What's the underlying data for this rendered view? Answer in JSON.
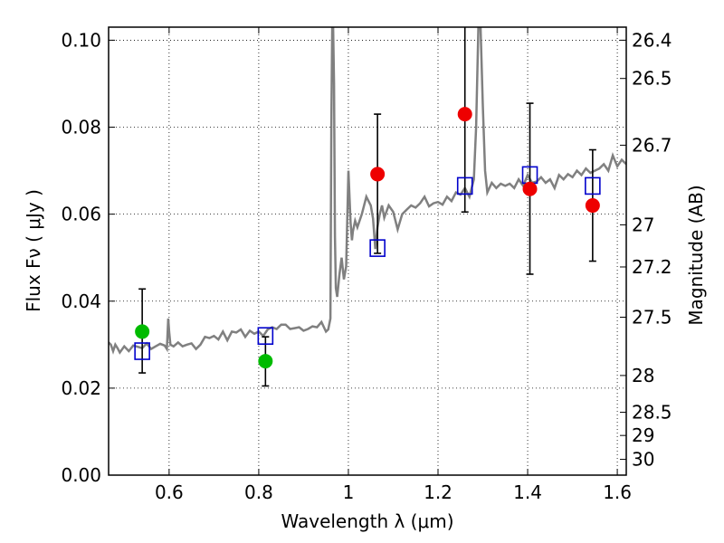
{
  "chart_data": {
    "type": "scatter",
    "xlabel": "Wavelength  λ (μm)",
    "ylabel": "Flux  Fν  ( μJy )",
    "ylabel_right": "Magnitude (AB)",
    "xlim": [
      0.465,
      1.62
    ],
    "ylim": [
      0.0,
      0.103
    ],
    "grid": true,
    "x_ticks": [
      0.6,
      0.8,
      1.0,
      1.2,
      1.4,
      1.6
    ],
    "x_tick_labels": [
      "0.6",
      "0.8",
      "1",
      "1.2",
      "1.4",
      "1.6"
    ],
    "y_ticks": [
      0.0,
      0.02,
      0.04,
      0.06,
      0.08,
      0.1
    ],
    "y_tick_labels": [
      "0.00",
      "0.02",
      "0.04",
      "0.06",
      "0.08",
      "0.10"
    ],
    "mag_ticks": [
      26.4,
      26.5,
      26.7,
      27,
      27.2,
      27.5,
      28,
      28.5,
      29,
      30
    ],
    "mag_tick_labels": [
      "26.4",
      "26.5",
      "26.7",
      "27",
      "27.2",
      "27.5",
      "28",
      "28.5",
      "29",
      "30"
    ],
    "series": [
      {
        "name": "model spectrum",
        "kind": "line",
        "color": "#808080",
        "x": [
          0.465,
          0.47,
          0.475,
          0.48,
          0.485,
          0.49,
          0.5,
          0.51,
          0.52,
          0.53,
          0.54,
          0.55,
          0.56,
          0.57,
          0.58,
          0.59,
          0.595,
          0.598,
          0.6,
          0.603,
          0.61,
          0.62,
          0.63,
          0.64,
          0.65,
          0.66,
          0.67,
          0.68,
          0.69,
          0.7,
          0.71,
          0.72,
          0.73,
          0.74,
          0.75,
          0.76,
          0.77,
          0.78,
          0.79,
          0.8,
          0.81,
          0.82,
          0.83,
          0.84,
          0.85,
          0.86,
          0.87,
          0.88,
          0.89,
          0.9,
          0.91,
          0.92,
          0.93,
          0.94,
          0.95,
          0.955,
          0.96,
          0.962,
          0.964,
          0.966,
          0.968,
          0.97,
          0.972,
          0.975,
          0.98,
          0.985,
          0.99,
          0.995,
          1.0,
          1.003,
          1.005,
          1.008,
          1.01,
          1.015,
          1.02,
          1.03,
          1.04,
          1.05,
          1.055,
          1.06,
          1.065,
          1.07,
          1.075,
          1.08,
          1.09,
          1.1,
          1.11,
          1.12,
          1.13,
          1.14,
          1.15,
          1.16,
          1.17,
          1.18,
          1.19,
          1.2,
          1.21,
          1.22,
          1.23,
          1.24,
          1.25,
          1.26,
          1.27,
          1.28,
          1.285,
          1.29,
          1.295,
          1.3,
          1.305,
          1.31,
          1.32,
          1.33,
          1.34,
          1.35,
          1.36,
          1.37,
          1.38,
          1.39,
          1.4,
          1.41,
          1.42,
          1.43,
          1.44,
          1.45,
          1.46,
          1.47,
          1.48,
          1.49,
          1.5,
          1.51,
          1.52,
          1.53,
          1.54,
          1.55,
          1.56,
          1.57,
          1.58,
          1.59,
          1.6,
          1.61,
          1.62
        ],
        "y": [
          0.0305,
          0.03,
          0.0285,
          0.03,
          0.0292,
          0.0282,
          0.0296,
          0.0285,
          0.0298,
          0.0295,
          0.0292,
          0.0303,
          0.029,
          0.0296,
          0.0302,
          0.0298,
          0.029,
          0.036,
          0.033,
          0.03,
          0.0296,
          0.0305,
          0.0296,
          0.03,
          0.0303,
          0.029,
          0.03,
          0.0318,
          0.0315,
          0.032,
          0.0312,
          0.033,
          0.031,
          0.033,
          0.0328,
          0.0335,
          0.0318,
          0.0332,
          0.0325,
          0.033,
          0.032,
          0.0335,
          0.034,
          0.0336,
          0.0346,
          0.0346,
          0.0336,
          0.0338,
          0.034,
          0.0332,
          0.0336,
          0.0342,
          0.034,
          0.0352,
          0.033,
          0.0335,
          0.036,
          0.08,
          0.103,
          0.103,
          0.09,
          0.055,
          0.043,
          0.041,
          0.046,
          0.05,
          0.045,
          0.048,
          0.07,
          0.063,
          0.058,
          0.054,
          0.056,
          0.0585,
          0.057,
          0.06,
          0.064,
          0.062,
          0.059,
          0.052,
          0.057,
          0.06,
          0.062,
          0.0592,
          0.062,
          0.0605,
          0.0565,
          0.06,
          0.061,
          0.062,
          0.0615,
          0.0625,
          0.064,
          0.0618,
          0.0625,
          0.0628,
          0.0622,
          0.064,
          0.063,
          0.065,
          0.0645,
          0.066,
          0.064,
          0.068,
          0.08,
          0.103,
          0.103,
          0.085,
          0.07,
          0.065,
          0.0672,
          0.066,
          0.067,
          0.0665,
          0.067,
          0.066,
          0.068,
          0.0665,
          0.069,
          0.0672,
          0.0675,
          0.0685,
          0.0672,
          0.068,
          0.066,
          0.069,
          0.068,
          0.0692,
          0.0685,
          0.07,
          0.069,
          0.0705,
          0.0695,
          0.07,
          0.0705,
          0.0715,
          0.07,
          0.0735,
          0.071,
          0.0725,
          0.0715
        ]
      },
      {
        "name": "model photometry",
        "kind": "open-square",
        "color": "#0000cc",
        "x": [
          0.54,
          0.815,
          1.065,
          1.26,
          1.405,
          1.545
        ],
        "y": [
          0.0285,
          0.032,
          0.0522,
          0.0665,
          0.069,
          0.0665
        ]
      },
      {
        "name": "observed (green)",
        "kind": "filled-circle",
        "color": "#00bb00",
        "x": [
          0.54,
          0.815
        ],
        "y": [
          0.033,
          0.0262
        ],
        "err": [
          [
            0.0235,
            0.0428
          ],
          [
            0.0205,
            0.0318
          ]
        ]
      },
      {
        "name": "observed (red)",
        "kind": "filled-circle",
        "color": "#ee0000",
        "x": [
          1.065,
          1.26,
          1.405,
          1.545
        ],
        "y": [
          0.0692,
          0.083,
          0.0658,
          0.062
        ],
        "err": [
          [
            0.051,
            0.083
          ],
          [
            0.0605,
            0.103
          ],
          [
            0.0462,
            0.0855
          ],
          [
            0.0492,
            0.0748
          ]
        ]
      }
    ]
  }
}
